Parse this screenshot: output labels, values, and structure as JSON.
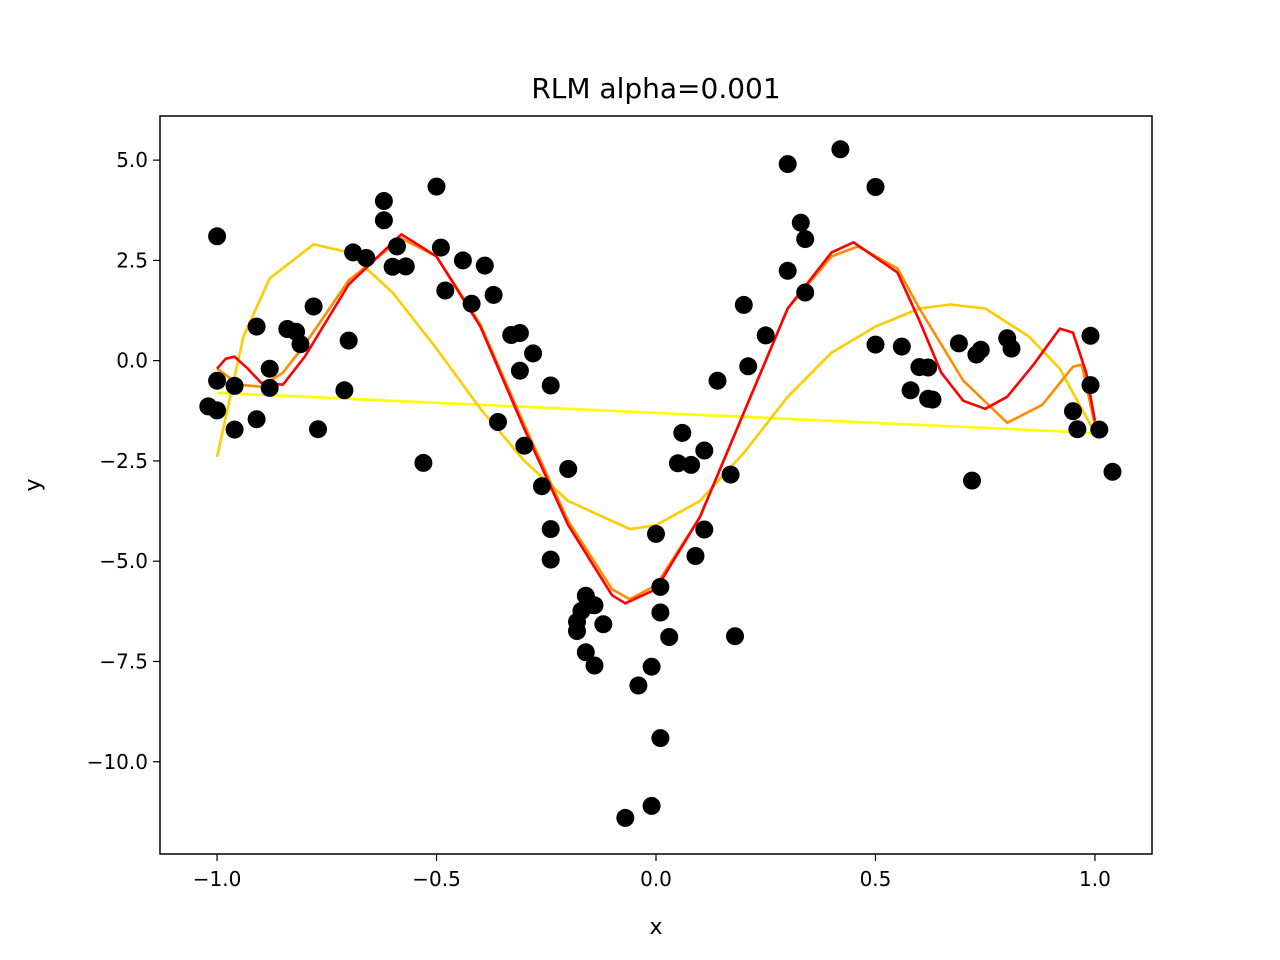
{
  "chart_data": {
    "type": "scatter",
    "title": "RLM alpha=0.001",
    "xlabel": "x",
    "ylabel": "y",
    "xlim": [
      -1.13,
      1.13
    ],
    "ylim": [
      -12.3,
      6.1
    ],
    "grid": false,
    "xticks": [
      -1.0,
      -0.5,
      0.0,
      0.5,
      1.0
    ],
    "xtick_labels": [
      "−1.0",
      "−0.5",
      "0.0",
      "0.5",
      "1.0"
    ],
    "yticks": [
      5.0,
      2.5,
      0.0,
      -2.5,
      -5.0,
      -7.5,
      -10.0
    ],
    "ytick_labels": [
      "5.0",
      "2.5",
      "0.0",
      "−2.5",
      "−5.0",
      "−7.5",
      "−10.0"
    ],
    "points": [
      [
        -1.02,
        -1.14
      ],
      [
        -1.0,
        3.1
      ],
      [
        -1.0,
        -0.5
      ],
      [
        -1.0,
        -1.24
      ],
      [
        -0.96,
        -1.72
      ],
      [
        -0.96,
        -0.63
      ],
      [
        -0.91,
        0.85
      ],
      [
        -0.91,
        -1.46
      ],
      [
        -0.88,
        -0.68
      ],
      [
        -0.88,
        -0.2
      ],
      [
        -0.84,
        0.79
      ],
      [
        -0.82,
        0.72
      ],
      [
        -0.81,
        0.41
      ],
      [
        -0.78,
        1.35
      ],
      [
        -0.77,
        -1.71
      ],
      [
        -0.71,
        -0.74
      ],
      [
        -0.7,
        0.5
      ],
      [
        -0.69,
        2.7
      ],
      [
        -0.66,
        2.56
      ],
      [
        -0.62,
        3.98
      ],
      [
        -0.62,
        3.5
      ],
      [
        -0.6,
        2.34
      ],
      [
        -0.59,
        2.85
      ],
      [
        -0.57,
        2.35
      ],
      [
        -0.53,
        -2.55
      ],
      [
        -0.5,
        4.34
      ],
      [
        -0.49,
        2.82
      ],
      [
        -0.48,
        1.75
      ],
      [
        -0.44,
        2.5
      ],
      [
        -0.42,
        1.42
      ],
      [
        -0.39,
        2.37
      ],
      [
        -0.37,
        1.64
      ],
      [
        -0.36,
        -1.53
      ],
      [
        -0.33,
        0.64
      ],
      [
        -0.31,
        0.69
      ],
      [
        -0.31,
        -0.25
      ],
      [
        -0.3,
        -2.12
      ],
      [
        -0.28,
        0.18
      ],
      [
        -0.26,
        -3.13
      ],
      [
        -0.24,
        -0.62
      ],
      [
        -0.24,
        -4.2
      ],
      [
        -0.24,
        -4.96
      ],
      [
        -0.2,
        -2.7
      ],
      [
        -0.18,
        -6.74
      ],
      [
        -0.18,
        -6.51
      ],
      [
        -0.17,
        -6.24
      ],
      [
        -0.16,
        -7.27
      ],
      [
        -0.16,
        -5.86
      ],
      [
        -0.15,
        -6.09
      ],
      [
        -0.14,
        -7.6
      ],
      [
        -0.14,
        -6.1
      ],
      [
        -0.12,
        -6.57
      ],
      [
        -0.07,
        -11.4
      ],
      [
        -0.04,
        -8.1
      ],
      [
        -0.01,
        -11.1
      ],
      [
        -0.01,
        -7.63
      ],
      [
        0.0,
        -4.32
      ],
      [
        0.01,
        -9.41
      ],
      [
        0.01,
        -5.64
      ],
      [
        0.01,
        -6.28
      ],
      [
        0.03,
        -6.89
      ],
      [
        0.05,
        -2.56
      ],
      [
        0.06,
        -1.8
      ],
      [
        0.08,
        -2.6
      ],
      [
        0.09,
        -4.87
      ],
      [
        0.11,
        -2.24
      ],
      [
        0.11,
        -4.21
      ],
      [
        0.14,
        -0.5
      ],
      [
        0.17,
        -2.84
      ],
      [
        0.18,
        -6.87
      ],
      [
        0.2,
        1.39
      ],
      [
        0.21,
        -0.14
      ],
      [
        0.25,
        0.63
      ],
      [
        0.3,
        4.9
      ],
      [
        0.3,
        2.24
      ],
      [
        0.33,
        3.44
      ],
      [
        0.34,
        3.03
      ],
      [
        0.34,
        1.7
      ],
      [
        0.42,
        5.27
      ],
      [
        0.5,
        4.33
      ],
      [
        0.5,
        0.4
      ],
      [
        0.56,
        0.35
      ],
      [
        0.58,
        -0.74
      ],
      [
        0.6,
        -0.16
      ],
      [
        0.62,
        -0.95
      ],
      [
        0.62,
        -0.17
      ],
      [
        0.63,
        -0.97
      ],
      [
        0.69,
        0.43
      ],
      [
        0.72,
        -2.99
      ],
      [
        0.73,
        0.15
      ],
      [
        0.74,
        0.27
      ],
      [
        0.8,
        0.56
      ],
      [
        0.81,
        0.3
      ],
      [
        0.95,
        -1.26
      ],
      [
        0.96,
        -1.71
      ],
      [
        0.99,
        0.62
      ],
      [
        0.99,
        -0.61
      ],
      [
        1.01,
        -1.72
      ],
      [
        1.04,
        -2.77
      ]
    ],
    "series": [
      {
        "color": "#ffff00",
        "values": [
          [
            -1.0,
            -0.8
          ],
          [
            1.0,
            -1.8
          ]
        ]
      },
      {
        "color": "#ffcc00",
        "values": [
          [
            -1.0,
            -2.4
          ],
          [
            -0.94,
            0.6
          ],
          [
            -0.88,
            2.05
          ],
          [
            -0.78,
            2.9
          ],
          [
            -0.7,
            2.7
          ],
          [
            -0.6,
            1.7
          ],
          [
            -0.5,
            0.3
          ],
          [
            -0.4,
            -1.2
          ],
          [
            -0.3,
            -2.5
          ],
          [
            -0.2,
            -3.5
          ],
          [
            -0.06,
            -4.2
          ],
          [
            0.0,
            -4.1
          ],
          [
            0.1,
            -3.5
          ],
          [
            0.2,
            -2.3
          ],
          [
            0.3,
            -0.9
          ],
          [
            0.4,
            0.2
          ],
          [
            0.5,
            0.85
          ],
          [
            0.6,
            1.3
          ],
          [
            0.67,
            1.4
          ],
          [
            0.75,
            1.3
          ],
          [
            0.85,
            0.6
          ],
          [
            0.92,
            -0.2
          ],
          [
            1.0,
            -1.8
          ]
        ]
      },
      {
        "color": "#ff8c00",
        "values": [
          [
            -1.0,
            -0.2
          ],
          [
            -0.95,
            -0.6
          ],
          [
            -0.9,
            -0.65
          ],
          [
            -0.85,
            -0.3
          ],
          [
            -0.8,
            0.4
          ],
          [
            -0.7,
            2.0
          ],
          [
            -0.58,
            3.05
          ],
          [
            -0.5,
            2.6
          ],
          [
            -0.4,
            0.9
          ],
          [
            -0.3,
            -1.6
          ],
          [
            -0.2,
            -4.0
          ],
          [
            -0.1,
            -5.7
          ],
          [
            -0.06,
            -5.95
          ],
          [
            0.0,
            -5.6
          ],
          [
            0.1,
            -3.9
          ],
          [
            0.2,
            -1.3
          ],
          [
            0.3,
            1.3
          ],
          [
            0.4,
            2.6
          ],
          [
            0.46,
            2.85
          ],
          [
            0.55,
            2.3
          ],
          [
            0.6,
            1.3
          ],
          [
            0.7,
            -0.5
          ],
          [
            0.8,
            -1.55
          ],
          [
            0.88,
            -1.1
          ],
          [
            0.95,
            -0.15
          ],
          [
            0.97,
            -0.1
          ],
          [
            1.0,
            -1.6
          ]
        ]
      },
      {
        "color": "#ff0000",
        "values": [
          [
            -1.0,
            -0.2
          ],
          [
            -0.98,
            0.05
          ],
          [
            -0.96,
            0.1
          ],
          [
            -0.93,
            -0.2
          ],
          [
            -0.9,
            -0.55
          ],
          [
            -0.85,
            -0.6
          ],
          [
            -0.8,
            0.1
          ],
          [
            -0.7,
            1.9
          ],
          [
            -0.58,
            3.15
          ],
          [
            -0.5,
            2.6
          ],
          [
            -0.4,
            0.85
          ],
          [
            -0.3,
            -1.7
          ],
          [
            -0.2,
            -4.1
          ],
          [
            -0.1,
            -5.85
          ],
          [
            -0.07,
            -6.05
          ],
          [
            0.0,
            -5.7
          ],
          [
            0.1,
            -3.9
          ],
          [
            0.2,
            -1.3
          ],
          [
            0.3,
            1.3
          ],
          [
            0.4,
            2.7
          ],
          [
            0.45,
            2.95
          ],
          [
            0.55,
            2.2
          ],
          [
            0.6,
            1.0
          ],
          [
            0.65,
            -0.3
          ],
          [
            0.7,
            -1.0
          ],
          [
            0.75,
            -1.2
          ],
          [
            0.8,
            -0.9
          ],
          [
            0.86,
            -0.1
          ],
          [
            0.92,
            0.8
          ],
          [
            0.95,
            0.7
          ],
          [
            0.98,
            -0.3
          ],
          [
            1.0,
            -1.5
          ]
        ]
      }
    ]
  }
}
